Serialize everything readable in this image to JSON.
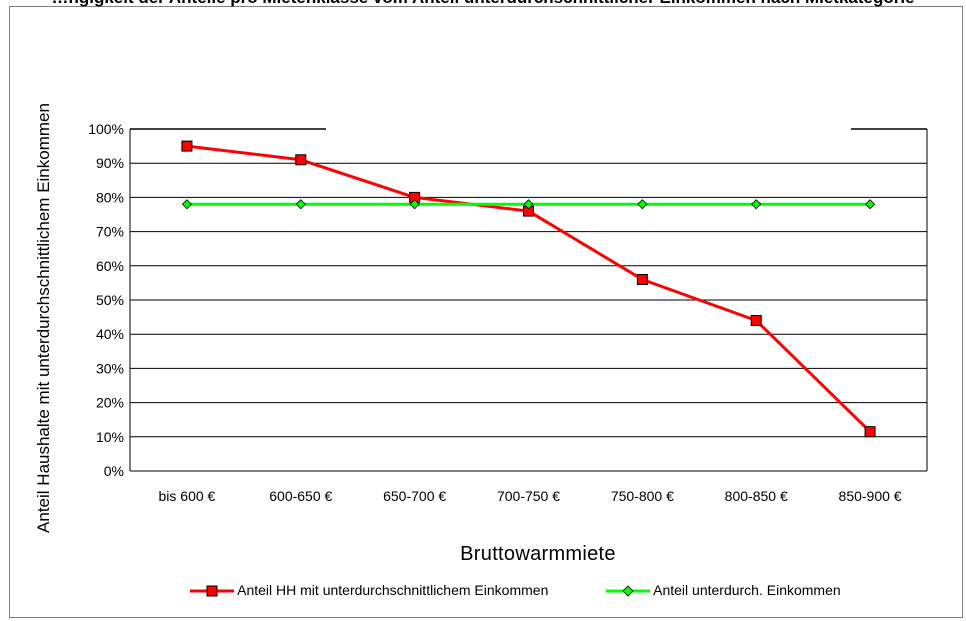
{
  "chart_data": {
    "type": "line",
    "title": "…ngigkeit der Anteile pro Mietenklasse vom Anteil unterdurchschnittlicher Einkommen nach Mietkategorie",
    "xlabel": "Bruttowarmmiete",
    "ylabel": "Anteil Haushalte mit unterdurchschnittlichem Einkommen",
    "categories": [
      "bis 600 €",
      "600-650 €",
      "650-700 €",
      "700-750 €",
      "750-800 €",
      "800-850 €",
      "850-900 €"
    ],
    "ylim": [
      0,
      100
    ],
    "yticks": [
      "0%",
      "10%",
      "20%",
      "30%",
      "40%",
      "50%",
      "60%",
      "70%",
      "80%",
      "90%",
      "100%"
    ],
    "grid": true,
    "legend_position": "bottom",
    "series": [
      {
        "name": "Anteil HH mit unterdurchschnittlichem Einkommen",
        "values": [
          95,
          91,
          80,
          76,
          56,
          44,
          11.5
        ],
        "color": "#ff0000",
        "marker": "square"
      },
      {
        "name": "Anteil unterdurch. Einkommen",
        "values": [
          78,
          78,
          78,
          78,
          78,
          78,
          78
        ],
        "color": "#00ff00",
        "marker": "diamond"
      }
    ]
  }
}
